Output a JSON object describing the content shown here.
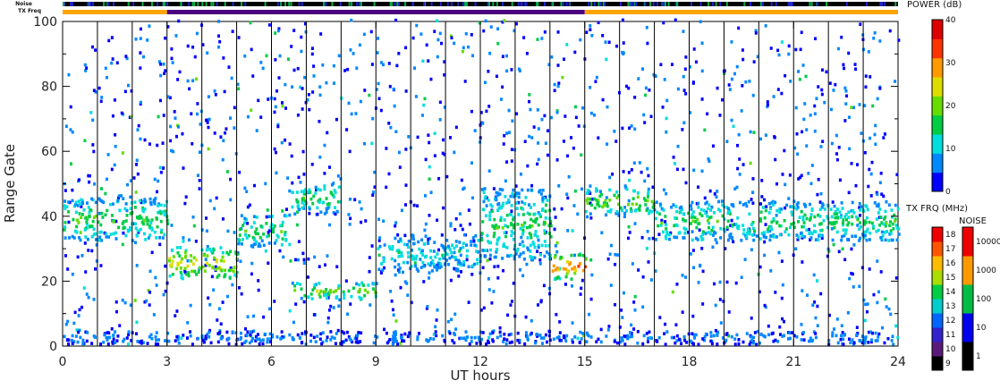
{
  "chart_data": {
    "type": "heatmap",
    "xlabel": "UT hours",
    "ylabel": "Range Gate",
    "xlim": [
      0,
      24
    ],
    "ylim": [
      0,
      100
    ],
    "x_ticks": [
      "0",
      "3",
      "6",
      "9",
      "12",
      "15",
      "18",
      "21",
      "24"
    ],
    "y_ticks": [
      "0",
      "20",
      "40",
      "60",
      "80",
      "100"
    ],
    "scan_boundaries_ut": [
      1,
      2,
      3,
      4,
      5,
      6,
      7,
      8,
      9,
      10,
      11,
      12,
      13,
      14,
      15,
      16,
      17,
      18,
      19,
      20,
      21,
      22,
      23
    ],
    "power_bands": [
      {
        "ut_start": 0,
        "ut_end": 3,
        "gate_low": 32,
        "gate_high": 45,
        "power_db": 15
      },
      {
        "ut_start": 3,
        "ut_end": 5,
        "gate_low": 20,
        "gate_high": 30,
        "power_db": 22
      },
      {
        "ut_start": 5,
        "ut_end": 6.5,
        "gate_low": 30,
        "gate_high": 40,
        "power_db": 15
      },
      {
        "ut_start": 6.5,
        "ut_end": 8,
        "gate_low": 40,
        "gate_high": 50,
        "power_db": 14
      },
      {
        "ut_start": 6.5,
        "ut_end": 9,
        "gate_low": 14,
        "gate_high": 19,
        "power_db": 18
      },
      {
        "ut_start": 9,
        "ut_end": 12,
        "gate_low": 22,
        "gate_high": 34,
        "power_db": 10
      },
      {
        "ut_start": 12,
        "ut_end": 14,
        "gate_low": 26,
        "gate_high": 48,
        "power_db": 14
      },
      {
        "ut_start": 14,
        "ut_end": 15,
        "gate_low": 20,
        "gate_high": 28,
        "power_db": 28
      },
      {
        "ut_start": 15,
        "ut_end": 17,
        "gate_low": 40,
        "gate_high": 48,
        "power_db": 18
      },
      {
        "ut_start": 17,
        "ut_end": 24,
        "gate_low": 32,
        "gate_high": 44,
        "power_db": 14
      },
      {
        "ut_start": 0,
        "ut_end": 24,
        "gate_low": 0,
        "gate_high": 4,
        "power_db": 6
      }
    ],
    "tx_freq_segments": [
      {
        "ut_start": 0,
        "ut_end": 3,
        "freq_mhz": 15
      },
      {
        "ut_start": 3,
        "ut_end": 15,
        "freq_mhz": 10
      },
      {
        "ut_start": 15,
        "ut_end": 24,
        "freq_mhz": 15
      }
    ]
  },
  "colorbars": {
    "power": {
      "title": "POWER (dB)",
      "ticks": [
        "0",
        "10",
        "20",
        "30",
        "40"
      ],
      "colors": [
        "#0000ff",
        "#0088ff",
        "#00dddd",
        "#00cc44",
        "#66dd00",
        "#dddd00",
        "#ff9900",
        "#ff3300",
        "#dd0000"
      ]
    },
    "tx_freq": {
      "title": "TX FRQ (MHz)",
      "ticks": [
        "9",
        "10",
        "11",
        "12",
        "13",
        "14",
        "15",
        "16",
        "17",
        "18"
      ],
      "colors": [
        "#000000",
        "#5a1a7a",
        "#3322cc",
        "#0066ff",
        "#00cccc",
        "#00cc44",
        "#aadd00",
        "#ffbb00",
        "#ff5500",
        "#ee0000"
      ]
    },
    "noise": {
      "title": "NOISE",
      "ticks": [
        "1",
        "10",
        "100",
        "1000",
        "10000"
      ],
      "colors": [
        "#000000",
        "#0000ee",
        "#00bb44",
        "#ff9900",
        "#ee0000"
      ]
    }
  },
  "top_bars": {
    "noise_label": "Noise",
    "txfreq_label": "TX Freq",
    "colors": {
      "noise": "#000000",
      "tx_15": "#ffa500",
      "tx_10": "#4b0082"
    }
  }
}
